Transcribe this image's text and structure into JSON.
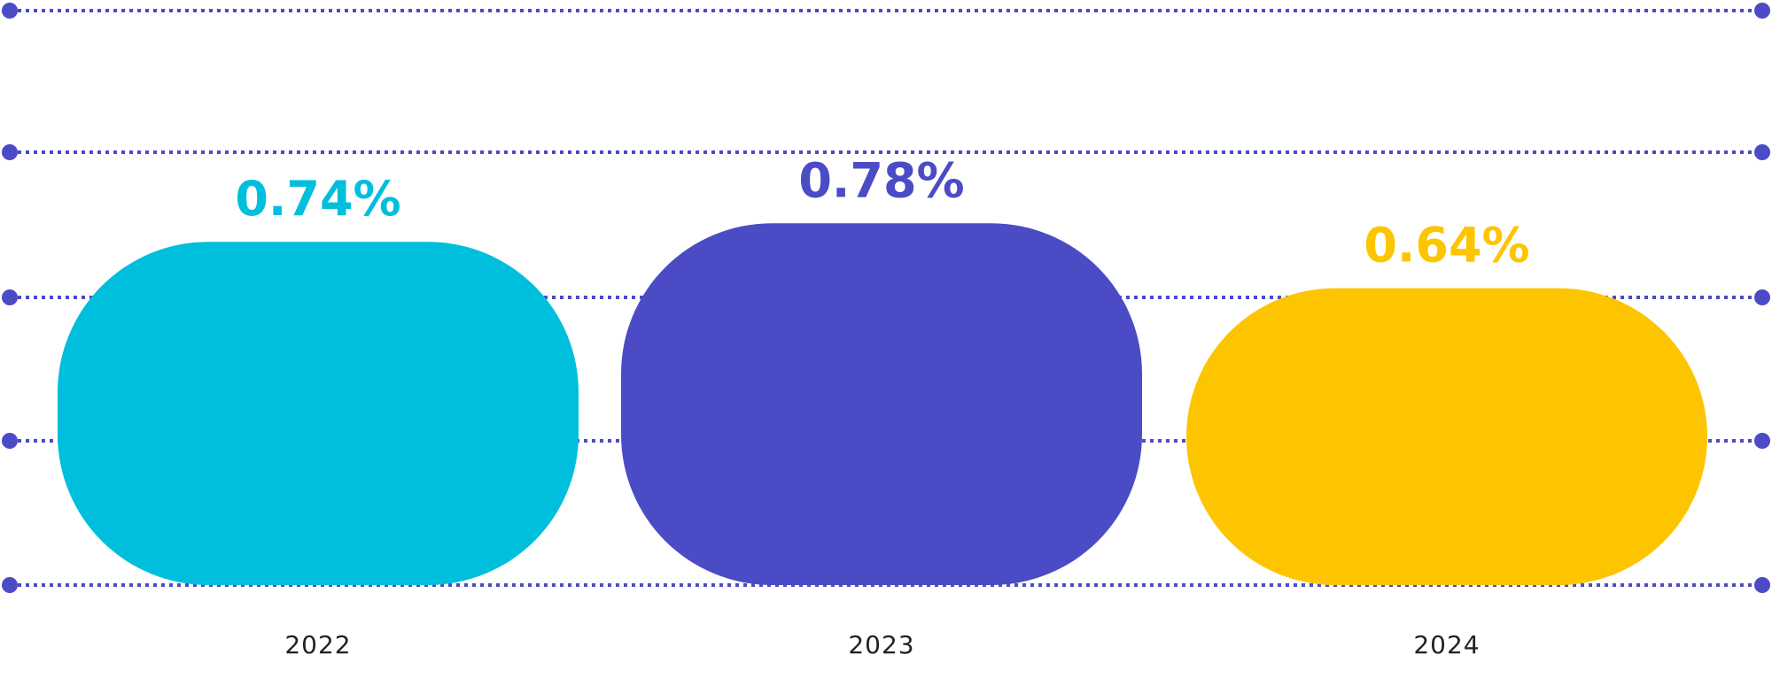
{
  "chart_data": {
    "type": "bar",
    "categories": [
      "2022",
      "2023",
      "2024"
    ],
    "values": [
      0.74,
      0.78,
      0.64
    ],
    "value_labels": [
      "0.74%",
      "0.78%",
      "0.64%"
    ],
    "bar_colors": [
      "#00BFDC",
      "#4B4BC6",
      "#FDC500"
    ],
    "grid_color": "#4B4BC6",
    "grid_style": "dotted",
    "grid": true,
    "title": "",
    "xlabel": "",
    "ylabel": ""
  }
}
